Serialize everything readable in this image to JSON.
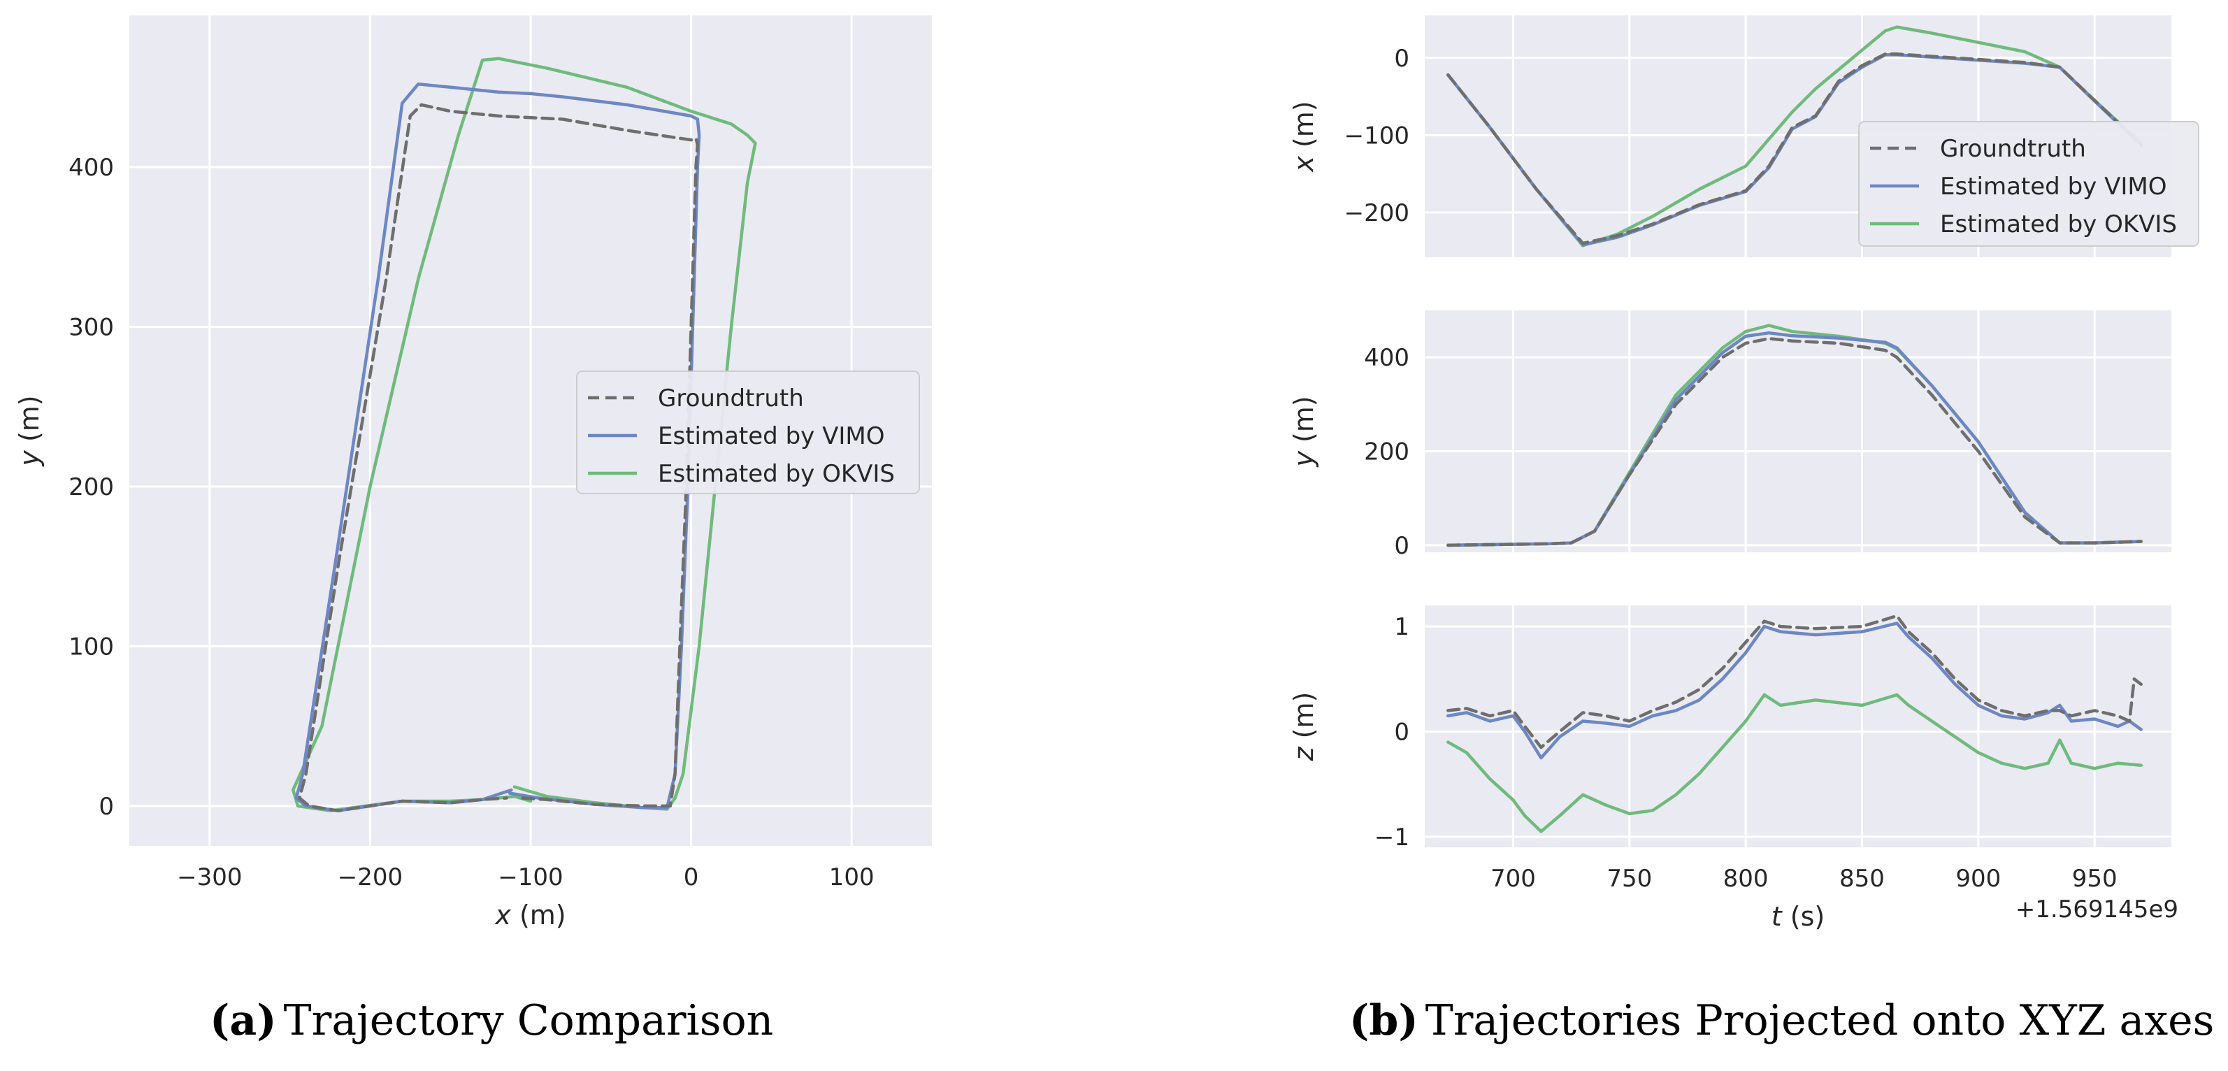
{
  "colors": {
    "groundtruth": "#6e6e6e",
    "vimo": "#6d87c4",
    "okvis": "#6fba7c",
    "background": "#eaeaf2"
  },
  "captions": {
    "a_label": "(a)",
    "a_text": "Trajectory Comparison",
    "b_label": "(b)",
    "b_text": "Trajectories Projected onto XYZ axes"
  },
  "legend": [
    "Groundtruth",
    "Estimated by VIMO",
    "Estimated by OKVIS"
  ],
  "chart_data": [
    {
      "id": "a",
      "type": "line",
      "title": "",
      "xlabel_var": "x",
      "xlabel_unit": " (m)",
      "ylabel_var": "y",
      "ylabel_unit": " (m)",
      "xlim": [
        -350,
        150
      ],
      "ylim": [
        -25,
        495
      ],
      "xticks": [
        -300,
        -200,
        -100,
        0,
        100
      ],
      "xtick_labels": [
        "−300",
        "−200",
        "−100",
        "0",
        "100"
      ],
      "yticks": [
        0,
        100,
        200,
        300,
        400
      ],
      "ytick_labels": [
        "0",
        "100",
        "200",
        "300",
        "400"
      ],
      "legend_position": "center-right",
      "series": [
        {
          "name": "Groundtruth",
          "style": "dashed",
          "x": [
            -105,
            -90,
            -60,
            -30,
            -13,
            -10,
            -7,
            -3,
            0,
            3,
            4,
            3,
            0,
            -40,
            -80,
            -100,
            -120,
            -150,
            -168,
            -175,
            -190,
            -220,
            -240,
            -244,
            -238,
            -220,
            -180,
            -150,
            -130,
            -115
          ],
          "y": [
            5,
            4,
            1,
            0,
            0,
            20,
            100,
            200,
            300,
            400,
            414,
            418,
            417,
            423,
            430,
            431,
            432,
            435,
            439,
            432,
            330,
            150,
            20,
            5,
            0,
            -3,
            3,
            2,
            4,
            5
          ]
        },
        {
          "name": "Estimated by VIMO",
          "style": "solid",
          "x": [
            -113,
            -95,
            -60,
            -30,
            -15,
            -10,
            -6,
            -2,
            1,
            4,
            5,
            4,
            0,
            -40,
            -80,
            -100,
            -120,
            -150,
            -170,
            -180,
            -195,
            -222,
            -242,
            -246,
            -240,
            -220,
            -180,
            -150,
            -130,
            -112
          ],
          "y": [
            8,
            5,
            1,
            -1,
            -1,
            20,
            100,
            200,
            300,
            400,
            420,
            430,
            432,
            439,
            444,
            446,
            447,
            450,
            452,
            440,
            330,
            150,
            20,
            5,
            0,
            -3,
            3,
            2,
            4,
            10
          ]
        },
        {
          "name": "Estimated by OKVIS",
          "style": "solid",
          "x": [
            -110,
            -90,
            -60,
            -30,
            -15,
            -10,
            -5,
            5,
            15,
            25,
            35,
            40,
            35,
            25,
            0,
            -40,
            -90,
            -120,
            -130,
            -145,
            -170,
            -200,
            -230,
            -248,
            -245,
            -225,
            -180,
            -150,
            -130,
            -110,
            -100
          ],
          "y": [
            12,
            6,
            2,
            -1,
            -2,
            5,
            20,
            100,
            200,
            300,
            390,
            415,
            420,
            427,
            435,
            450,
            462,
            468,
            467,
            420,
            330,
            200,
            50,
            10,
            0,
            -3,
            3,
            3,
            4,
            6,
            3
          ]
        }
      ]
    },
    {
      "id": "b-x",
      "type": "line",
      "ylabel_var": "x",
      "ylabel_unit": " (m)",
      "xlim": [
        662,
        983
      ],
      "ylim": [
        -258,
        55
      ],
      "xticks": [
        700,
        750,
        800,
        850,
        900,
        950
      ],
      "yticks": [
        -200,
        -100,
        0
      ],
      "ytick_labels": [
        "−200",
        "−100",
        "0"
      ],
      "legend_position": "center-right",
      "series": [
        {
          "name": "Groundtruth",
          "style": "dashed",
          "t": [
            672,
            690,
            710,
            730,
            745,
            760,
            780,
            800,
            810,
            820,
            830,
            840,
            850,
            860,
            865,
            880,
            900,
            920,
            935,
            950,
            970
          ],
          "v": [
            -22,
            -90,
            -170,
            -240,
            -230,
            -215,
            -190,
            -172,
            -140,
            -90,
            -75,
            -30,
            -10,
            5,
            5,
            2,
            -2,
            -6,
            -12,
            -55,
            -112
          ]
        },
        {
          "name": "Estimated by VIMO",
          "style": "solid",
          "t": [
            672,
            690,
            710,
            730,
            745,
            760,
            780,
            800,
            810,
            820,
            830,
            840,
            850,
            860,
            865,
            880,
            900,
            920,
            935,
            950,
            970
          ],
          "v": [
            -22,
            -90,
            -170,
            -242,
            -232,
            -216,
            -191,
            -173,
            -142,
            -92,
            -76,
            -32,
            -12,
            4,
            4,
            1,
            -3,
            -7,
            -12,
            -56,
            -113
          ]
        },
        {
          "name": "Estimated by OKVIS",
          "style": "solid",
          "t": [
            672,
            690,
            710,
            730,
            745,
            760,
            780,
            800,
            810,
            820,
            830,
            840,
            850,
            860,
            865,
            880,
            900,
            920,
            935,
            950,
            970
          ],
          "v": [
            -22,
            -90,
            -170,
            -243,
            -228,
            -205,
            -170,
            -140,
            -105,
            -70,
            -40,
            -15,
            10,
            35,
            40,
            32,
            20,
            8,
            -12,
            -55,
            -110
          ]
        }
      ]
    },
    {
      "id": "b-y",
      "type": "line",
      "ylabel_var": "y",
      "ylabel_unit": " (m)",
      "xlim": [
        662,
        983
      ],
      "ylim": [
        -15,
        500
      ],
      "xticks": [
        700,
        750,
        800,
        850,
        900,
        950
      ],
      "yticks": [
        0,
        200,
        400
      ],
      "ytick_labels": [
        "0",
        "200",
        "400"
      ],
      "series": [
        {
          "name": "Groundtruth",
          "style": "dashed",
          "t": [
            672,
            700,
            715,
            725,
            735,
            750,
            770,
            790,
            800,
            810,
            820,
            840,
            860,
            865,
            880,
            900,
            920,
            935,
            950,
            970
          ],
          "v": [
            0,
            2,
            3,
            5,
            30,
            150,
            300,
            400,
            430,
            440,
            435,
            430,
            415,
            400,
            320,
            200,
            60,
            5,
            5,
            8
          ]
        },
        {
          "name": "Estimated by VIMO",
          "style": "solid",
          "t": [
            672,
            700,
            715,
            725,
            735,
            750,
            770,
            790,
            800,
            810,
            820,
            840,
            860,
            865,
            880,
            900,
            920,
            935,
            950,
            970
          ],
          "v": [
            0,
            2,
            3,
            5,
            30,
            150,
            310,
            410,
            445,
            452,
            446,
            441,
            432,
            420,
            340,
            220,
            70,
            5,
            5,
            8
          ]
        },
        {
          "name": "Estimated by OKVIS",
          "style": "solid",
          "t": [
            672,
            700,
            715,
            725,
            735,
            750,
            770,
            790,
            800,
            810,
            820,
            840,
            860,
            865,
            880,
            900,
            920,
            935,
            950,
            970
          ],
          "v": [
            0,
            2,
            3,
            5,
            30,
            155,
            320,
            420,
            455,
            468,
            455,
            445,
            430,
            418,
            340,
            220,
            70,
            5,
            5,
            8
          ]
        }
      ]
    },
    {
      "id": "b-z",
      "type": "line",
      "ylabel_var": "z",
      "ylabel_unit": " (m)",
      "xlabel_var": "t",
      "xlabel_unit": " (s)",
      "offset_text": "+1.569145e9",
      "xlim": [
        662,
        983
      ],
      "ylim": [
        -1.1,
        1.2
      ],
      "xticks": [
        700,
        750,
        800,
        850,
        900,
        950
      ],
      "xtick_labels": [
        "700",
        "750",
        "800",
        "850",
        "900",
        "950"
      ],
      "yticks": [
        -1,
        0,
        1
      ],
      "ytick_labels": [
        "−1",
        "0",
        "1"
      ],
      "series": [
        {
          "name": "Groundtruth",
          "style": "dashed",
          "t": [
            672,
            680,
            690,
            700,
            705,
            712,
            720,
            730,
            740,
            750,
            760,
            770,
            780,
            790,
            800,
            808,
            815,
            830,
            850,
            865,
            870,
            880,
            890,
            900,
            910,
            920,
            930,
            935,
            940,
            950,
            960,
            965,
            967,
            970
          ],
          "v": [
            0.2,
            0.22,
            0.15,
            0.2,
            0.05,
            -0.15,
            0.0,
            0.18,
            0.15,
            0.1,
            0.2,
            0.28,
            0.4,
            0.6,
            0.85,
            1.05,
            1.0,
            0.98,
            1.0,
            1.1,
            0.95,
            0.75,
            0.5,
            0.3,
            0.2,
            0.15,
            0.2,
            0.2,
            0.15,
            0.2,
            0.15,
            0.1,
            0.5,
            0.45
          ]
        },
        {
          "name": "Estimated by VIMO",
          "style": "solid",
          "t": [
            672,
            680,
            690,
            700,
            705,
            712,
            720,
            730,
            740,
            750,
            760,
            770,
            780,
            790,
            800,
            808,
            815,
            830,
            850,
            865,
            870,
            880,
            890,
            900,
            910,
            920,
            930,
            935,
            940,
            950,
            960,
            965,
            970
          ],
          "v": [
            0.15,
            0.18,
            0.1,
            0.15,
            0.0,
            -0.25,
            -0.05,
            0.1,
            0.08,
            0.05,
            0.15,
            0.2,
            0.3,
            0.5,
            0.75,
            1.0,
            0.95,
            0.92,
            0.95,
            1.03,
            0.9,
            0.7,
            0.45,
            0.25,
            0.15,
            0.12,
            0.18,
            0.25,
            0.1,
            0.12,
            0.05,
            0.1,
            0.02
          ]
        },
        {
          "name": "Estimated by OKVIS",
          "style": "solid",
          "t": [
            672,
            680,
            690,
            700,
            705,
            712,
            720,
            730,
            740,
            750,
            760,
            770,
            780,
            790,
            800,
            808,
            815,
            830,
            850,
            865,
            870,
            880,
            890,
            900,
            910,
            920,
            930,
            935,
            940,
            950,
            960,
            970
          ],
          "v": [
            -0.1,
            -0.2,
            -0.45,
            -0.65,
            -0.8,
            -0.95,
            -0.8,
            -0.6,
            -0.7,
            -0.78,
            -0.75,
            -0.6,
            -0.4,
            -0.15,
            0.1,
            0.35,
            0.25,
            0.3,
            0.25,
            0.35,
            0.25,
            0.1,
            -0.05,
            -0.2,
            -0.3,
            -0.35,
            -0.3,
            -0.08,
            -0.3,
            -0.35,
            -0.3,
            -0.32
          ]
        }
      ]
    }
  ]
}
